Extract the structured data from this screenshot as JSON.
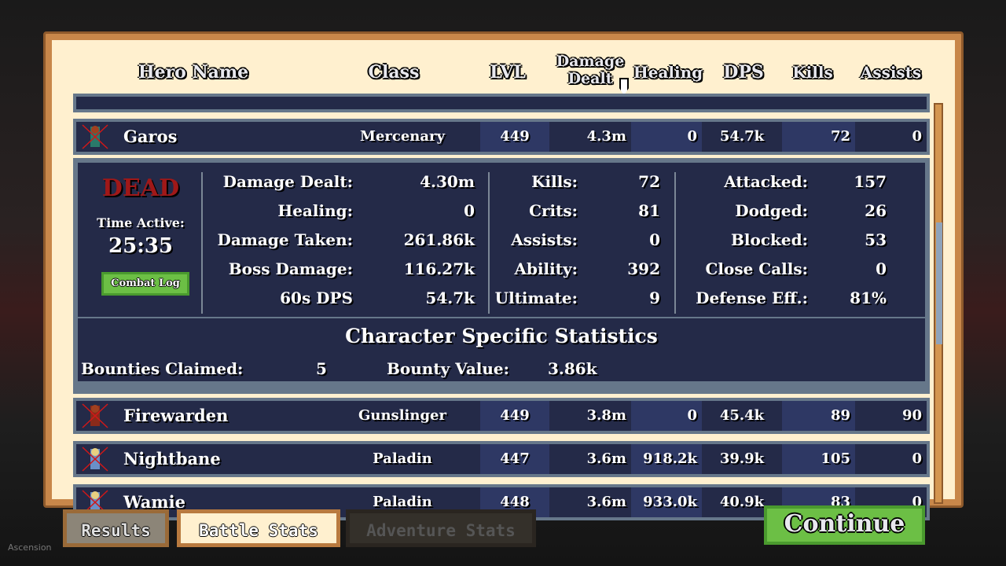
{
  "header": {
    "hero_name": "Hero Name",
    "class": "Class",
    "lvl": "LVL",
    "damage_dealt": "Damage Dealt",
    "healing": "Healing",
    "dps": "DPS",
    "kills": "Kills",
    "assists": "Assists"
  },
  "rows": [
    {
      "name": "Garos",
      "class": "Mercenary",
      "lvl": "449",
      "damage": "4.3m",
      "healing": "0",
      "dps": "54.7k",
      "kills": "72",
      "assists": "0",
      "dead": true
    },
    {
      "name": "Firewarden",
      "class": "Gunslinger",
      "lvl": "449",
      "damage": "3.8m",
      "healing": "0",
      "dps": "45.4k",
      "kills": "89",
      "assists": "90",
      "dead": true
    },
    {
      "name": "Nightbane",
      "class": "Paladin",
      "lvl": "447",
      "damage": "3.6m",
      "healing": "918.2k",
      "dps": "39.9k",
      "kills": "105",
      "assists": "0",
      "dead": true
    },
    {
      "name": "Wamie",
      "class": "Paladin",
      "lvl": "448",
      "damage": "3.6m",
      "healing": "933.0k",
      "dps": "40.9k",
      "kills": "83",
      "assists": "0",
      "dead": true
    }
  ],
  "detail": {
    "status": "DEAD",
    "time_label": "Time Active:",
    "time": "25:35",
    "combat_log": "Combat Log",
    "col1": [
      {
        "k": "Damage Dealt:",
        "v": "4.30m"
      },
      {
        "k": "Healing:",
        "v": "0"
      },
      {
        "k": "Damage Taken:",
        "v": "261.86k"
      },
      {
        "k": "Boss Damage:",
        "v": "116.27k"
      },
      {
        "k": "60s DPS",
        "v": "54.7k"
      }
    ],
    "col2": [
      {
        "k": "Kills:",
        "v": "72"
      },
      {
        "k": "Crits:",
        "v": "81"
      },
      {
        "k": "Assists:",
        "v": "0"
      },
      {
        "k": "Ability:",
        "v": "392"
      },
      {
        "k": "Ultimate:",
        "v": "9"
      }
    ],
    "col3": [
      {
        "k": "Attacked:",
        "v": "157"
      },
      {
        "k": "Dodged:",
        "v": "26"
      },
      {
        "k": "Blocked:",
        "v": "53"
      },
      {
        "k": "Close Calls:",
        "v": "0"
      },
      {
        "k": "Defense Eff.:",
        "v": "81%"
      }
    ],
    "specific_title": "Character Specific Statistics",
    "specific": [
      {
        "k": "Bounties Claimed:",
        "v": "5"
      },
      {
        "k": "Bounty Value:",
        "v": "3.86k"
      }
    ]
  },
  "tabs": [
    {
      "label": "Results",
      "active": false
    },
    {
      "label": "Battle Stats",
      "active": true
    },
    {
      "label": "Adventure Stats",
      "active": false
    }
  ],
  "continue_label": "Continue",
  "corner_text": "Ascension",
  "colors": {
    "frame": "#c8874a",
    "panel": "#242a48",
    "dead": "#a01818",
    "button": "#6cbf45"
  }
}
